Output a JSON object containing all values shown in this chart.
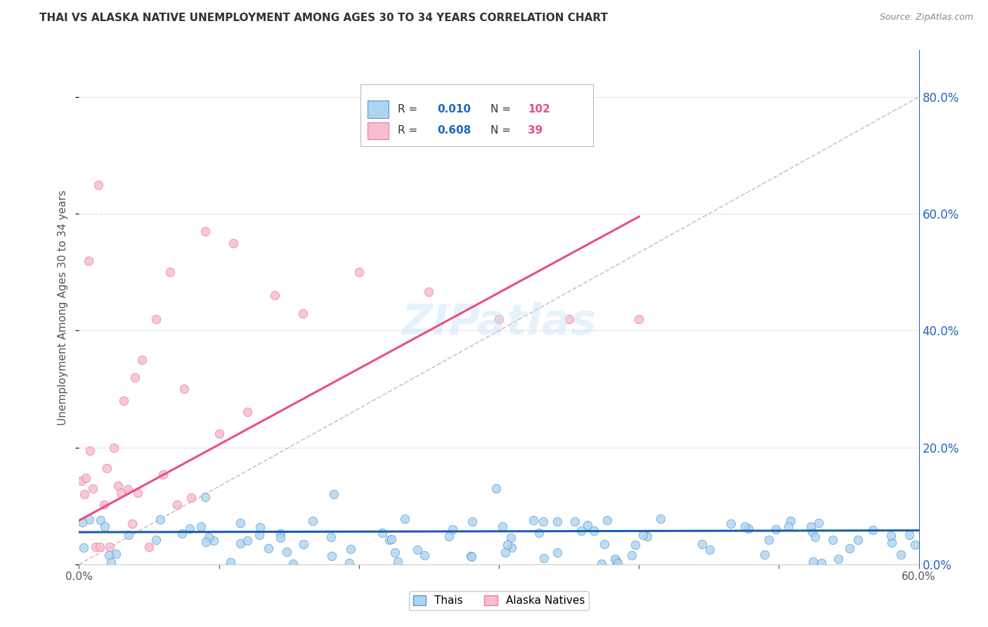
{
  "title": "THAI VS ALASKA NATIVE UNEMPLOYMENT AMONG AGES 30 TO 34 YEARS CORRELATION CHART",
  "source": "Source: ZipAtlas.com",
  "ylabel": "Unemployment Among Ages 30 to 34 years",
  "xmin": 0.0,
  "xmax": 0.6,
  "ymin": 0.0,
  "ymax": 0.88,
  "thai_color": "#ADD4F0",
  "alaska_color": "#F9BDD0",
  "thai_edge_color": "#5599CC",
  "alaska_edge_color": "#E87BA0",
  "thai_line_color": "#1A5DAB",
  "alaska_line_color": "#E8507A",
  "diagonal_color": "#D8B0B8",
  "right_axis_color": "#2266BB",
  "legend_thai_label": "Thais",
  "legend_alaska_label": "Alaska Natives",
  "R_thai": "0.010",
  "N_thai": "102",
  "R_alaska": "0.608",
  "N_alaska": "39",
  "R_color": "#2266BB",
  "N_color": "#E8507A",
  "watermark": "ZIPatlas",
  "grid_color": "#DDDDDD",
  "background_color": "#FFFFFF"
}
